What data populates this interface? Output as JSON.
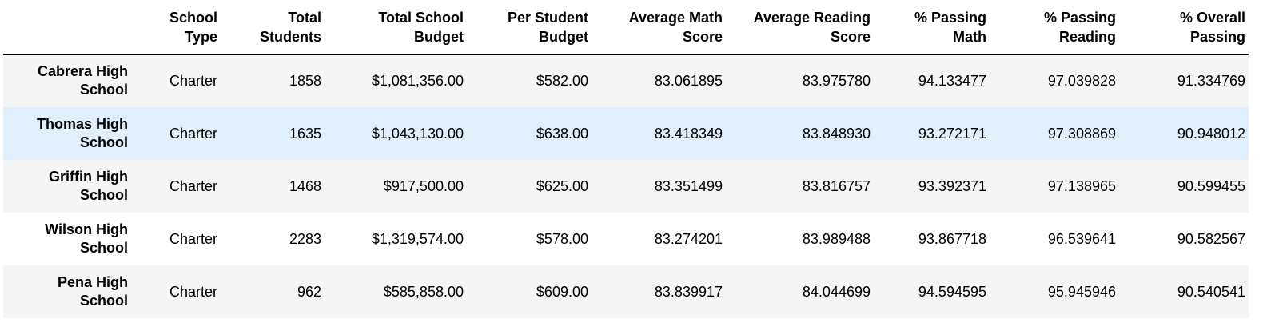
{
  "table": {
    "columns": [
      "",
      "School Type",
      "Total Students",
      "Total School Budget",
      "Per Student Budget",
      "Average Math Score",
      "Average Reading Score",
      "% Passing Math",
      "% Passing Reading",
      "% Overall Passing"
    ],
    "column_lines": [
      [
        ""
      ],
      [
        "School",
        "Type"
      ],
      [
        "Total",
        "Students"
      ],
      [
        "Total School",
        "Budget"
      ],
      [
        "Per Student",
        "Budget"
      ],
      [
        "Average Math",
        "Score"
      ],
      [
        "Average Reading",
        "Score"
      ],
      [
        "% Passing",
        "Math"
      ],
      [
        "% Passing",
        "Reading"
      ],
      [
        "% Overall",
        "Passing"
      ]
    ],
    "rows": [
      {
        "name_lines": [
          "Cabrera High",
          "School"
        ],
        "cells": [
          "Charter",
          "1858",
          "$1,081,356.00",
          "$582.00",
          "83.061895",
          "83.975780",
          "94.133477",
          "97.039828",
          "91.334769"
        ]
      },
      {
        "name_lines": [
          "Thomas High",
          "School"
        ],
        "cells": [
          "Charter",
          "1635",
          "$1,043,130.00",
          "$638.00",
          "83.418349",
          "83.848930",
          "93.272171",
          "97.308869",
          "90.948012"
        ],
        "highlighted": true
      },
      {
        "name_lines": [
          "Griffin High",
          "School"
        ],
        "cells": [
          "Charter",
          "1468",
          "$917,500.00",
          "$625.00",
          "83.351499",
          "83.816757",
          "93.392371",
          "97.138965",
          "90.599455"
        ]
      },
      {
        "name_lines": [
          "Wilson High",
          "School"
        ],
        "cells": [
          "Charter",
          "2283",
          "$1,319,574.00",
          "$578.00",
          "83.274201",
          "83.989488",
          "93.867718",
          "96.539641",
          "90.582567"
        ]
      },
      {
        "name_lines": [
          "Pena High",
          "School"
        ],
        "cells": [
          "Charter",
          "962",
          "$585,858.00",
          "$609.00",
          "83.839917",
          "84.044699",
          "94.594595",
          "95.945946",
          "90.540541"
        ]
      }
    ]
  },
  "colors": {
    "row_odd": "#f5f5f5",
    "row_even": "#ffffff",
    "row_hover": "#e1eefc",
    "header_rule": "#000000"
  }
}
